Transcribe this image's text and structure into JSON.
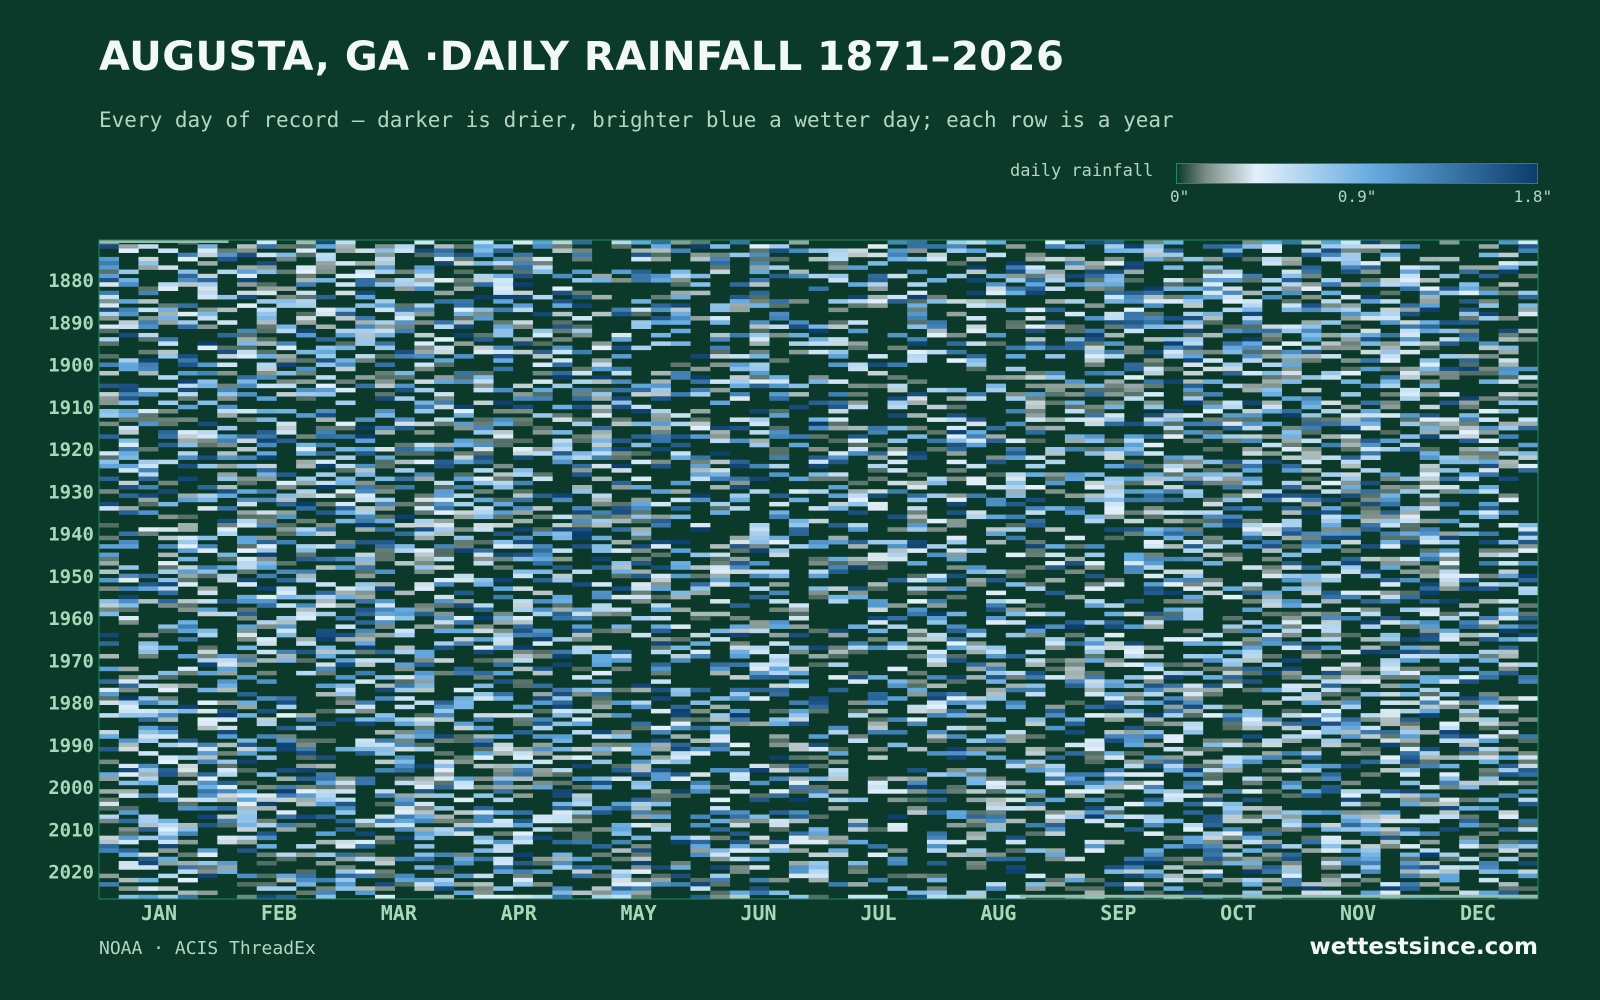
{
  "header": {
    "title": "AUGUSTA, GA ·DAILY RAINFALL 1871–2026",
    "subtitle": "Every day of record — darker is drier, brighter blue a wetter day; each row is a year"
  },
  "legend": {
    "label": "daily rainfall",
    "ticks": [
      "0\"",
      "0.9\"",
      "1.8\""
    ],
    "min": 0,
    "max": 1.8,
    "unit": "in"
  },
  "colors": {
    "background": "#0b3a2a",
    "border": "#1f8a62",
    "dry": "#0b3a2a",
    "light_rain": "#e4f1fb",
    "mid_rain": "#63a9df",
    "heavy_rain": "#0b3d6b",
    "missing": "#9fb8ac"
  },
  "chart_data": {
    "type": "heatmap",
    "title": "AUGUSTA, GA ·DAILY RAINFALL 1871–2026",
    "x_axis": {
      "categories": [
        "JAN",
        "FEB",
        "MAR",
        "APR",
        "MAY",
        "JUN",
        "JUL",
        "AUG",
        "SEP",
        "OCT",
        "NOV",
        "DEC"
      ],
      "range": [
        1,
        365
      ],
      "unit": "day of year"
    },
    "y_axis": {
      "range": [
        1871,
        2026
      ],
      "tick_labels": [
        "1880",
        "1890",
        "1900",
        "1910",
        "1920",
        "1930",
        "1940",
        "1950",
        "1960",
        "1970",
        "1980",
        "1990",
        "2000",
        "2010",
        "2020"
      ]
    },
    "value_range": [
      0,
      1.8
    ],
    "value_unit": "in",
    "grid": false,
    "legend_placement": "top-right"
  },
  "footer": {
    "source": "NOAA · ACIS ThreadEx",
    "brand": "wettestsince.com"
  }
}
